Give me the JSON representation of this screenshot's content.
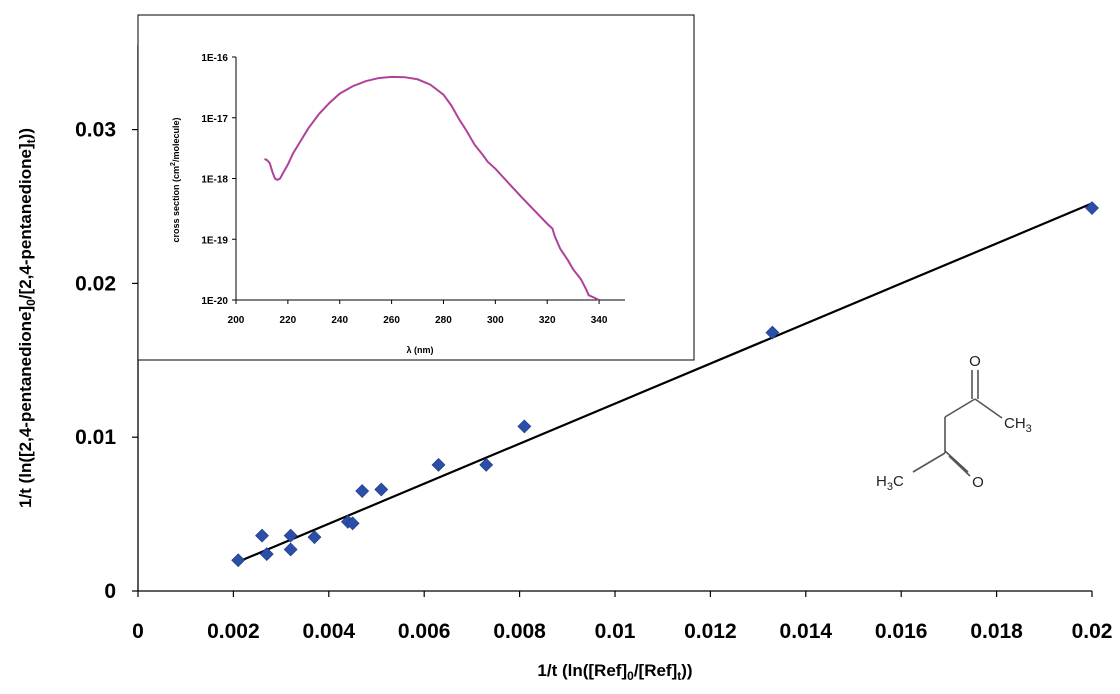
{
  "chart_data": [
    {
      "type": "scatter",
      "xlabel": "1/t (ln([Ref]0/[Ref]t))",
      "ylabel": "1/t (ln([2,4-pentanedione]0/[2,4-pentanedione]t))",
      "xlim": [
        0,
        0.02
      ],
      "ylim": [
        0,
        0.0355
      ],
      "x_ticks": [
        "0",
        "0.002",
        "0.004",
        "0.006",
        "0.008",
        "0.01",
        "0.012",
        "0.014",
        "0.016",
        "0.018",
        "0.02"
      ],
      "y_ticks": [
        "0",
        "0.01",
        "0.02",
        "0.03"
      ],
      "grid": false,
      "marker_color": "#2B4FA8",
      "line_color": "#000000",
      "series": [
        {
          "points": [
            [
              0.0021,
              0.002
            ],
            [
              0.0026,
              0.0036
            ],
            [
              0.0027,
              0.0024
            ],
            [
              0.0032,
              0.0036
            ],
            [
              0.0032,
              0.0027
            ],
            [
              0.0037,
              0.0035
            ],
            [
              0.0044,
              0.0045
            ],
            [
              0.0045,
              0.0044
            ],
            [
              0.0047,
              0.0065
            ],
            [
              0.0051,
              0.0066
            ],
            [
              0.0063,
              0.0082
            ],
            [
              0.0073,
              0.0082
            ],
            [
              0.0081,
              0.0107
            ],
            [
              0.0133,
              0.0168
            ],
            [
              0.02,
              0.0249
            ]
          ]
        }
      ],
      "fit_line": {
        "x": [
          0.0021,
          0.02
        ],
        "y": [
          0.0019,
          0.0252
        ]
      }
    },
    {
      "type": "line",
      "xlabel": "λ (nm)",
      "ylabel": "cross section (cm2/molecule)",
      "xlim": [
        200,
        350
      ],
      "ylim": [
        1e-20,
        1e-16
      ],
      "y_scale": "log",
      "x_ticks": [
        "200",
        "220",
        "240",
        "260",
        "280",
        "300",
        "320",
        "340"
      ],
      "y_ticks": [
        "1E-20",
        "1E-19",
        "1E-18",
        "1E-17",
        "1E-16"
      ],
      "line_color": "#B0419A",
      "series": [
        {
          "x": [
            211,
            212,
            213,
            214,
            215,
            216,
            217,
            218,
            220,
            222,
            225,
            228,
            232,
            236,
            240,
            245,
            250,
            255,
            260,
            265,
            270,
            275,
            280,
            283,
            286,
            289,
            292,
            295,
            297,
            300,
            305,
            310,
            315,
            320,
            322,
            323,
            325,
            328,
            330,
            333,
            335,
            336,
            338,
            340
          ],
          "y": [
            2.1e-18,
            2e-18,
            1.8e-18,
            1.3e-18,
            1e-18,
            9.5e-19,
            1e-18,
            1.2e-18,
            1.7e-18,
            2.6e-18,
            4.2e-18,
            6.8e-18,
            1.15e-17,
            1.75e-17,
            2.5e-17,
            3.3e-17,
            4e-17,
            4.5e-17,
            4.7e-17,
            4.65e-17,
            4.3e-17,
            3.5e-17,
            2.4e-17,
            1.6e-17,
            9.5e-18,
            6e-18,
            3.6e-18,
            2.5e-18,
            1.9e-18,
            1.45e-18,
            8.5e-19,
            5e-19,
            3e-19,
            1.8e-19,
            1.5e-19,
            1.1e-19,
            7e-20,
            4.5e-20,
            3.2e-20,
            2.2e-20,
            1.5e-20,
            1.2e-20,
            1.1e-20,
            1e-20
          ]
        }
      ]
    }
  ],
  "molecule": {
    "name": "2,4-pentanedione",
    "labels": {
      "o_top": "O",
      "ch3_right": "CH3",
      "h3c_left": "H3C",
      "o_bottom": "O"
    }
  }
}
